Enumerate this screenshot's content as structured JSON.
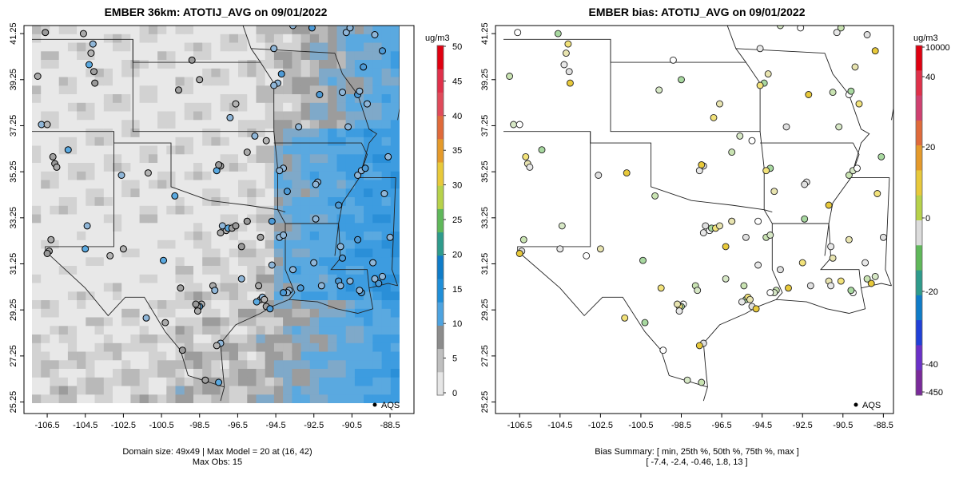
{
  "chart_data": [
    {
      "type": "heatmap",
      "title": "EMBER 36km: ATOTIJ_AVG on 09/01/2022",
      "x_ticks": [
        "-106.5",
        "-104.5",
        "-102.5",
        "-100.5",
        "-98.5",
        "-96.5",
        "-94.5",
        "-92.5",
        "-90.5",
        "-88.5"
      ],
      "y_ticks": [
        "25.25",
        "27.25",
        "29.25",
        "31.25",
        "33.25",
        "35.25",
        "37.25",
        "39.25",
        "41.25"
      ],
      "xlim": [
        -107.3,
        -88.0
      ],
      "ylim": [
        25.2,
        41.6
      ],
      "colorbar": {
        "unit": "ug/m3",
        "ticks": [
          "0",
          "5",
          "10",
          "15",
          "20",
          "25",
          "30",
          "35",
          "40",
          "45",
          "50"
        ],
        "range": [
          0,
          50
        ],
        "colors": [
          "#e6e6e6",
          "#bfbfbf",
          "#8c8c8c",
          "#4da3e0",
          "#1f8ed8",
          "#0f7cc8",
          "#2e9b8c",
          "#5fb85a",
          "#b7d24a",
          "#e8c93a",
          "#e59a2a",
          "#e06a3a",
          "#e04a5a",
          "#e0304a",
          "#e00010"
        ]
      },
      "legend": {
        "label": "AQS",
        "placement": "bottom-right"
      },
      "footer": [
        "Domain size: 49x49 | Max Model = 20 at (16, 42)",
        "Max Obs: 15"
      ]
    },
    {
      "type": "scatter",
      "title": "EMBER bias: ATOTIJ_AVG on 09/01/2022",
      "x_ticks": [
        "-106.5",
        "-104.5",
        "-102.5",
        "-100.5",
        "-98.5",
        "-96.5",
        "-94.5",
        "-92.5",
        "-90.5",
        "-88.5"
      ],
      "y_ticks": [
        "25.25",
        "27.25",
        "29.25",
        "31.25",
        "33.25",
        "35.25",
        "37.25",
        "39.25",
        "41.25"
      ],
      "xlim": [
        -107.3,
        -88.0
      ],
      "ylim": [
        25.2,
        41.6
      ],
      "colorbar": {
        "unit": "ug/m3",
        "ticks": [
          "10000",
          "40",
          "20",
          "0",
          "-20",
          "-40",
          "-450"
        ],
        "colors": [
          "#e00010",
          "#e0304a",
          "#d04070",
          "#e06a3a",
          "#e59a2a",
          "#e8c93a",
          "#b7d24a",
          "#dcdcdc",
          "#5fb85a",
          "#2e9b8c",
          "#0f7cc8",
          "#2040d8",
          "#6a30c8",
          "#7a2a9a"
        ]
      },
      "legend": {
        "label": "AQS",
        "placement": "bottom-right"
      },
      "footer": [
        "Bias Summary: [ min, 25th %, 50th %, 75th %, max ]",
        "[ -7.4,   -2.4,   -0.46,   1.8,   13 ]"
      ],
      "stations": [
        [
          -106.6,
          41.3
        ],
        [
          -104.6,
          41.25
        ],
        [
          -104.1,
          40.8
        ],
        [
          -104.2,
          40.4
        ],
        [
          -104.3,
          39.9
        ],
        [
          -104.05,
          39.6
        ],
        [
          -104.0,
          39.1
        ],
        [
          -107.0,
          39.4
        ],
        [
          -106.8,
          37.3
        ],
        [
          -106.5,
          37.3
        ],
        [
          -105.4,
          36.2
        ],
        [
          -106.2,
          35.9
        ],
        [
          -106.1,
          35.6
        ],
        [
          -106.0,
          35.45
        ],
        [
          -102.6,
          35.1
        ],
        [
          -101.2,
          35.2
        ],
        [
          -99.8,
          34.2
        ],
        [
          -99.6,
          38.8
        ],
        [
          -98.9,
          40.1
        ],
        [
          -98.5,
          39.25
        ],
        [
          -96.9,
          37.6
        ],
        [
          -96.6,
          38.2
        ],
        [
          -97.6,
          35.3
        ],
        [
          -97.4,
          35.5
        ],
        [
          -97.5,
          35.55
        ],
        [
          -96.0,
          36.1
        ],
        [
          -95.6,
          36.8
        ],
        [
          -95.0,
          36.6
        ],
        [
          -94.4,
          39.1
        ],
        [
          -94.6,
          39.0
        ],
        [
          -94.2,
          39.5
        ],
        [
          -94.6,
          40.6
        ],
        [
          -93.3,
          37.2
        ],
        [
          -92.2,
          38.6
        ],
        [
          -91.0,
          38.7
        ],
        [
          -90.7,
          37.2
        ],
        [
          -90.2,
          38.6
        ],
        [
          -90.1,
          38.75
        ],
        [
          -89.7,
          38.2
        ],
        [
          -89.9,
          39.8
        ],
        [
          -90.8,
          41.3
        ],
        [
          -89.3,
          41.2
        ],
        [
          -88.9,
          40.5
        ],
        [
          -90.6,
          41.5
        ],
        [
          -93.6,
          41.6
        ],
        [
          -92.6,
          41.5
        ],
        [
          -94.1,
          35.4
        ],
        [
          -94.3,
          35.3
        ],
        [
          -93.9,
          34.4
        ],
        [
          -92.3,
          34.8
        ],
        [
          -92.4,
          34.7
        ],
        [
          -91.2,
          33.8
        ],
        [
          -90.2,
          35.1
        ],
        [
          -90.0,
          35.3
        ],
        [
          -89.8,
          35.4
        ],
        [
          -88.6,
          35.9
        ],
        [
          -88.8,
          34.3
        ],
        [
          -90.2,
          32.3
        ],
        [
          -89.4,
          31.3
        ],
        [
          -88.5,
          32.4
        ],
        [
          -89.1,
          30.4
        ],
        [
          -89.3,
          30.6
        ],
        [
          -88.9,
          30.7
        ],
        [
          -90.0,
          30.0
        ],
        [
          -90.1,
          30.1
        ],
        [
          -90.6,
          30.5
        ],
        [
          -91.2,
          30.5
        ],
        [
          -91.1,
          30.3
        ],
        [
          -92.1,
          30.3
        ],
        [
          -93.2,
          30.2
        ],
        [
          -93.8,
          30.1
        ],
        [
          -93.9,
          30.0
        ],
        [
          -94.1,
          30.0
        ],
        [
          -95.3,
          29.7
        ],
        [
          -95.2,
          29.8
        ],
        [
          -95.1,
          29.7
        ],
        [
          -95.5,
          29.6
        ],
        [
          -95.0,
          29.4
        ],
        [
          -94.8,
          29.3
        ],
        [
          -95.4,
          30.3
        ],
        [
          -96.3,
          30.6
        ],
        [
          -97.1,
          32.7
        ],
        [
          -97.0,
          32.8
        ],
        [
          -96.8,
          32.8
        ],
        [
          -96.6,
          32.9
        ],
        [
          -97.4,
          32.6
        ],
        [
          -97.3,
          32.9
        ],
        [
          -96.0,
          33.1
        ],
        [
          -94.3,
          32.4
        ],
        [
          -94.1,
          32.5
        ],
        [
          -94.7,
          33.1
        ],
        [
          -92.4,
          33.2
        ],
        [
          -92.5,
          31.3
        ],
        [
          -91.0,
          31.5
        ],
        [
          -91.1,
          32.0
        ],
        [
          -95.3,
          32.4
        ],
        [
          -96.3,
          32.0
        ],
        [
          -97.8,
          30.3
        ],
        [
          -97.7,
          30.1
        ],
        [
          -98.4,
          29.5
        ],
        [
          -98.5,
          29.4
        ],
        [
          -98.6,
          29.4
        ],
        [
          -98.7,
          29.5
        ],
        [
          -98.6,
          29.2
        ],
        [
          -97.4,
          27.8
        ],
        [
          -97.6,
          27.7
        ],
        [
          -97.5,
          26.1
        ],
        [
          -98.2,
          26.2
        ],
        [
          -99.4,
          27.5
        ],
        [
          -100.3,
          28.7
        ],
        [
          -101.3,
          28.9
        ],
        [
          -102.5,
          31.9
        ],
        [
          -104.5,
          31.9
        ],
        [
          -106.4,
          31.8
        ],
        [
          -106.5,
          31.7
        ],
        [
          -106.3,
          32.3
        ],
        [
          -104.4,
          32.9
        ],
        [
          -103.2,
          31.6
        ],
        [
          -100.4,
          31.4
        ],
        [
          -99.5,
          30.2
        ],
        [
          -96.0,
          33.1
        ],
        [
          -94.7,
          31.2
        ],
        [
          -93.6,
          31.0
        ]
      ]
    }
  ]
}
